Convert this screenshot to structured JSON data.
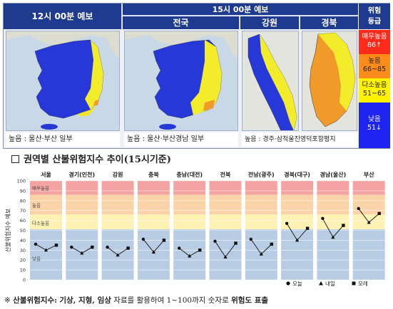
{
  "forecast": {
    "header_12": "12시 00분 예보",
    "header_15": "15시 00분 예보",
    "region_national": "전국",
    "region_gangwon": "강원",
    "region_gyeongbuk": "경북",
    "level_header": "위험\n등급",
    "levels": [
      {
        "label": "매우높음",
        "range": "86↑",
        "color": "#ff2a1a"
      },
      {
        "label": "높음",
        "range": "66~85",
        "color": "#ff8c1a"
      },
      {
        "label": "다소높음",
        "range": "51~65",
        "color": "#fff200"
      },
      {
        "label": "낮음",
        "range": "51↓",
        "color": "#1e24f2"
      }
    ],
    "caption_12": "높음 : 울산·부산 일부",
    "caption_15": "높음 : 울산·부산경남 일부",
    "caption_regional": "높음 : 경주·삼척울진영덕포항평지"
  },
  "section_title": "권역별 산불위험지수 추이(15시기준)",
  "chart_data": {
    "type": "line",
    "ylabel": "산불위험지수 예보",
    "ylim": [
      0,
      100
    ],
    "yticks": [
      0,
      10,
      20,
      30,
      40,
      50,
      60,
      70,
      80,
      90,
      100
    ],
    "bands": [
      {
        "label": "매우높음",
        "from": 86,
        "to": 100,
        "color": "#f4a3a3"
      },
      {
        "label": "높음",
        "from": 66,
        "to": 86,
        "color": "#fbd3a8"
      },
      {
        "label": "다소높음",
        "from": 51,
        "to": 66,
        "color": "#fdf1b4"
      },
      {
        "label": "낮음",
        "from": 0,
        "to": 51,
        "color": "#b8cce4"
      }
    ],
    "categories": [
      "서울",
      "경기(인천)",
      "강원",
      "충북",
      "충남(대전)",
      "전북",
      "전남(광주)",
      "경북(대구)",
      "경남(울산)",
      "부산"
    ],
    "x": [
      "오늘",
      "내일",
      "모레"
    ],
    "series": [
      {
        "region": "서울",
        "values": [
          36,
          30,
          35
        ]
      },
      {
        "region": "경기(인천)",
        "values": [
          33,
          27,
          33
        ]
      },
      {
        "region": "강원",
        "values": [
          33,
          25,
          32
        ]
      },
      {
        "region": "충북",
        "values": [
          41,
          28,
          40
        ]
      },
      {
        "region": "충남(대전)",
        "values": [
          32,
          24,
          30
        ]
      },
      {
        "region": "전북",
        "values": [
          39,
          23,
          37
        ]
      },
      {
        "region": "전남(광주)",
        "values": [
          41,
          26,
          36
        ]
      },
      {
        "region": "경북(대구)",
        "values": [
          57,
          40,
          52
        ]
      },
      {
        "region": "경남(울산)",
        "values": [
          62,
          43,
          55
        ]
      },
      {
        "region": "부산",
        "values": [
          72,
          58,
          67
        ]
      }
    ],
    "legend": [
      {
        "marker": "circle",
        "label": "오늘"
      },
      {
        "marker": "triangle",
        "label": "내일"
      },
      {
        "marker": "square",
        "label": "모레"
      }
    ],
    "band_label_매우높음": "매우높음",
    "band_label_높음": "높음",
    "band_label_다소높음": "다소높음",
    "band_label_낮음": "낮음"
  },
  "footnote": {
    "mark": "※",
    "term": "산불위험지수:",
    "factors": "기상, 지형, 임상",
    "middle": "자료를 활용하여 1~100까지 숫자로",
    "end": "위험도 표출"
  }
}
